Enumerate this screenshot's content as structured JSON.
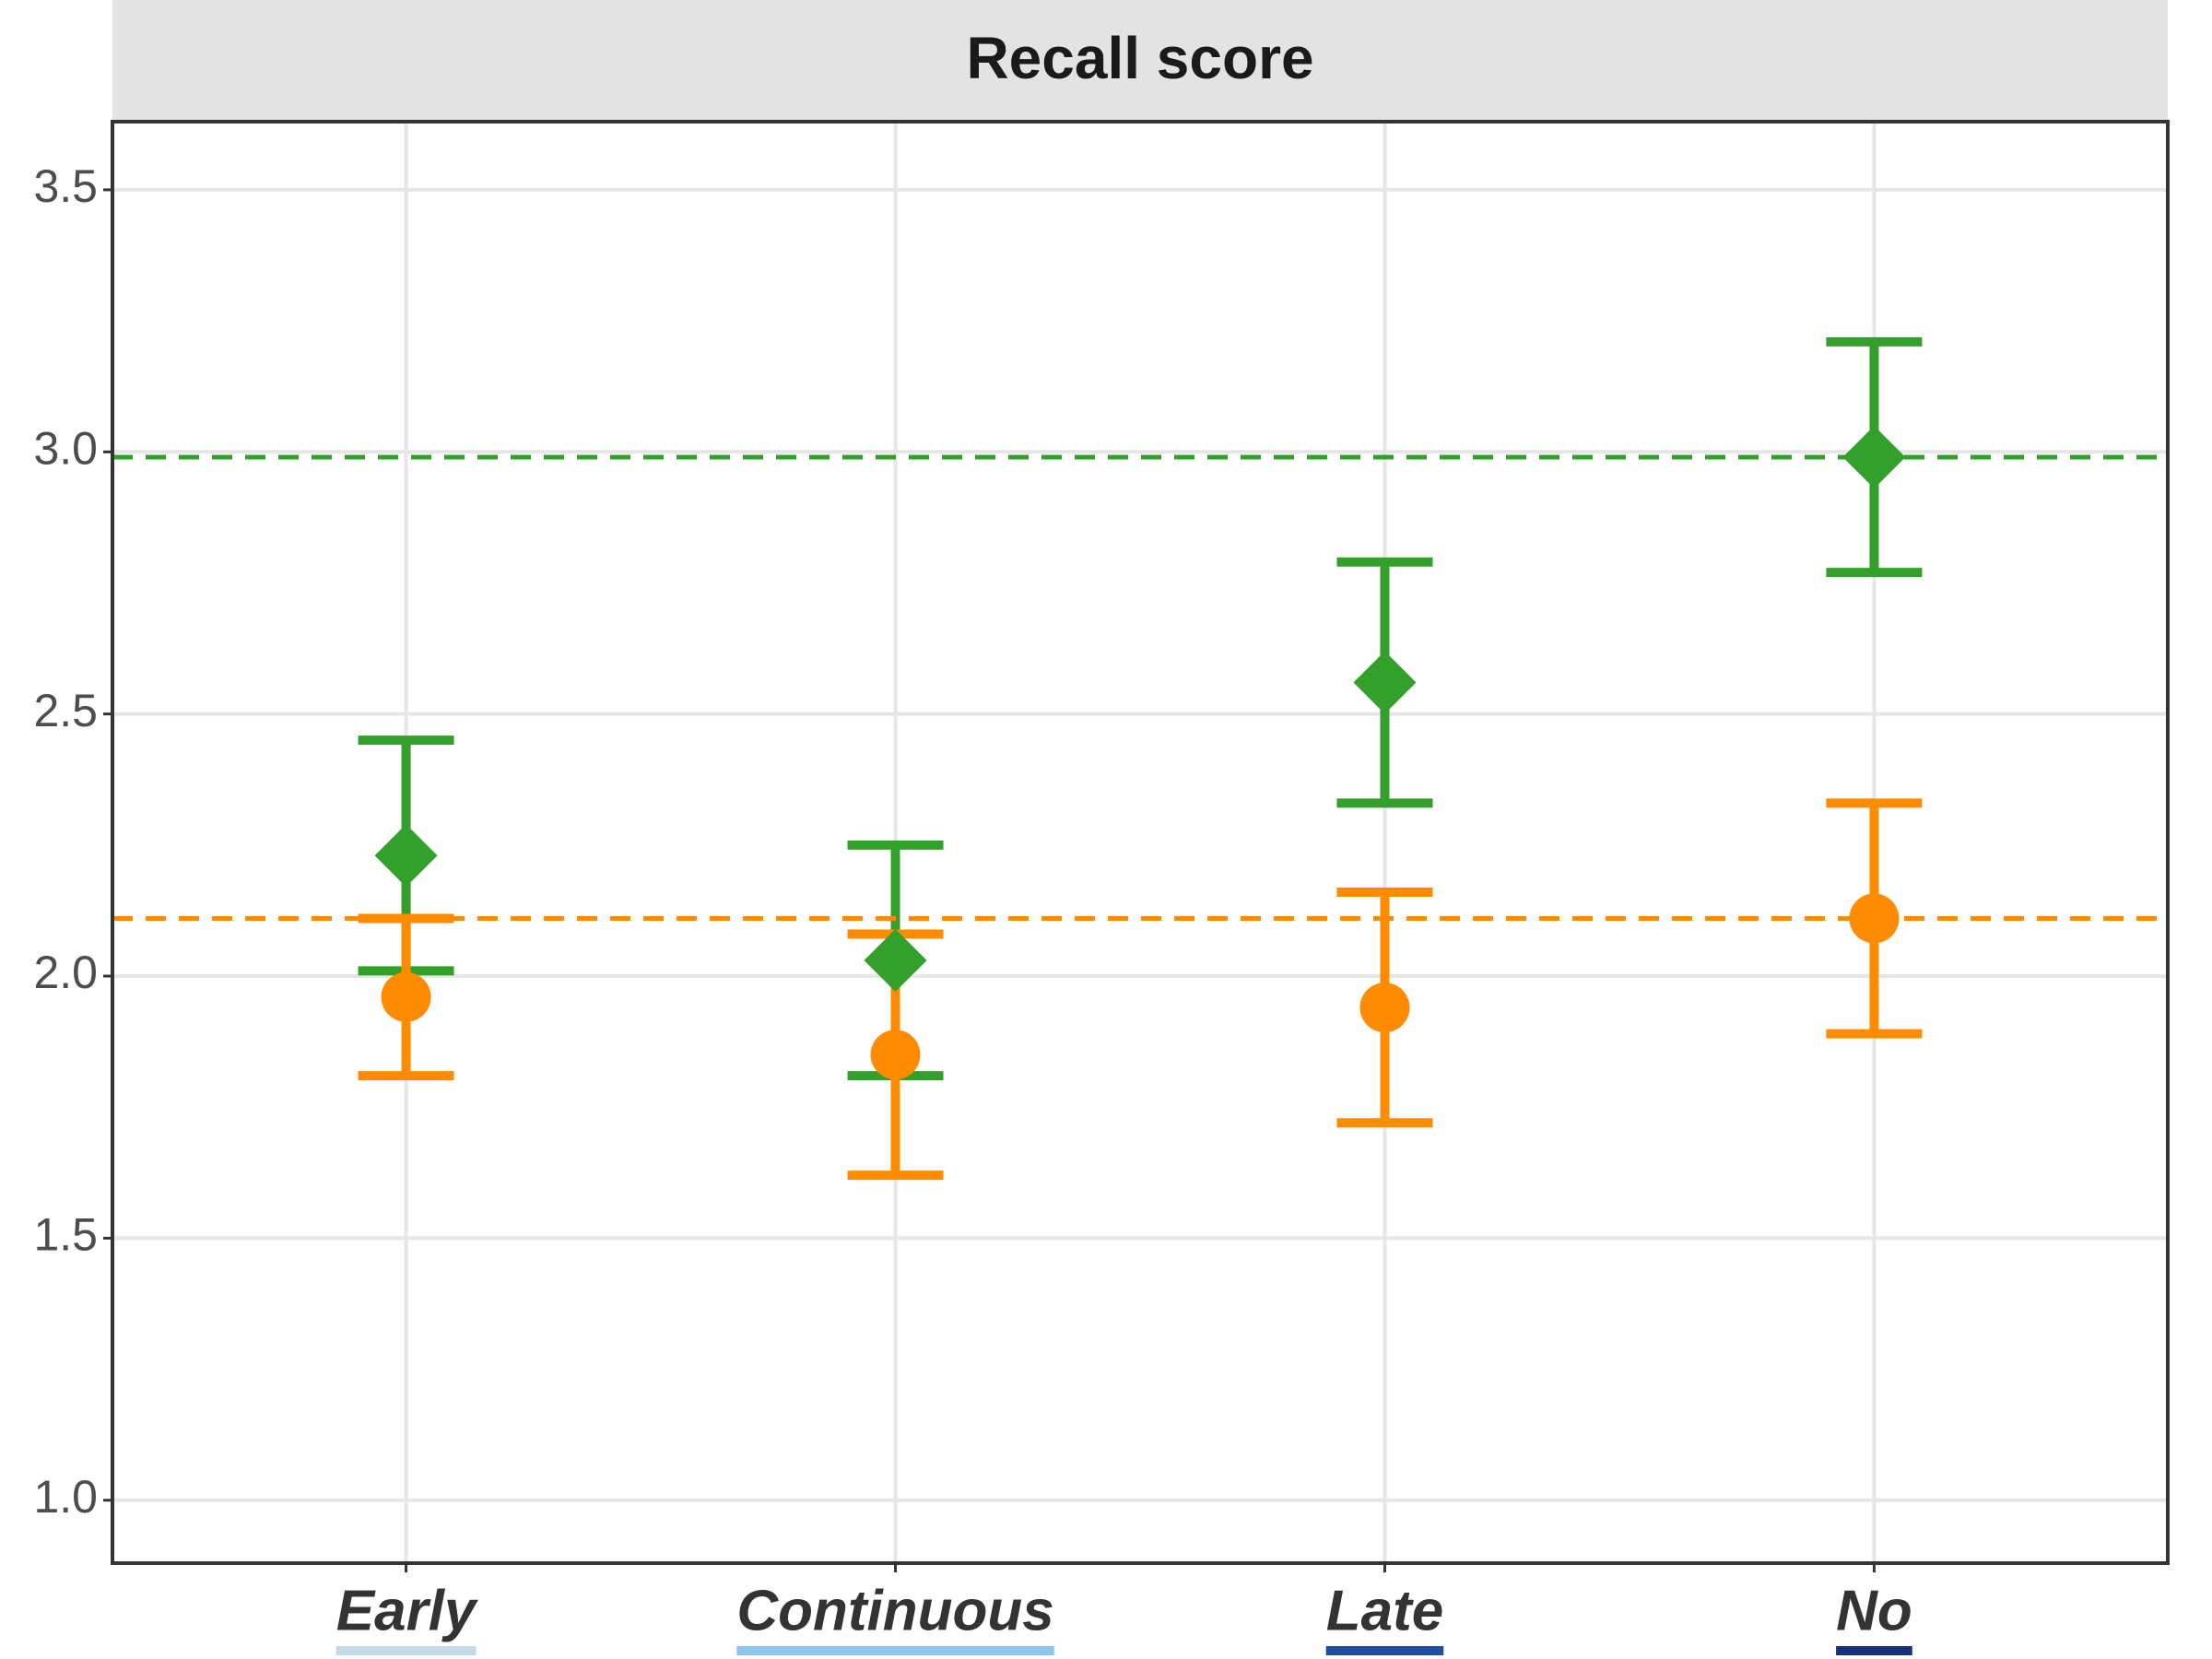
{
  "chart_data": {
    "type": "errorbar",
    "title": "Recall score",
    "categories": [
      "Early",
      "Continuous",
      "Late",
      "No"
    ],
    "category_colors": [
      "#c6d8e6",
      "#8ec5ee",
      "#1f4ea0",
      "#1a2f7a"
    ],
    "series": [
      {
        "color": "#33a02c",
        "marker": "diamond",
        "values": [
          2.23,
          2.03,
          2.56,
          2.99
        ],
        "lower": [
          2.01,
          1.81,
          2.33,
          2.77
        ],
        "upper": [
          2.45,
          2.25,
          2.79,
          3.21
        ],
        "reference": 2.99
      },
      {
        "color": "#ff8c00",
        "marker": "circle",
        "values": [
          1.96,
          1.85,
          1.94,
          2.11
        ],
        "lower": [
          1.81,
          1.62,
          1.72,
          1.89
        ],
        "upper": [
          2.11,
          2.08,
          2.16,
          2.33
        ],
        "reference": 2.11
      }
    ],
    "ylim": [
      0.88,
      3.63
    ],
    "yticks": [
      {
        "value": 1.0,
        "label": "1.0"
      },
      1.5,
      {
        "value": 2.0,
        "label": "2.0"
      },
      2.5,
      {
        "value": 3.0,
        "label": "3.0"
      },
      3.5
    ],
    "grid": true
  }
}
